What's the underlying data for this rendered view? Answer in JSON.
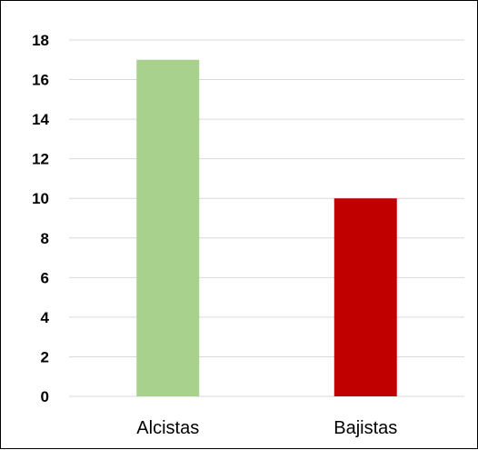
{
  "chart_data": {
    "type": "bar",
    "categories": [
      "Alcistas",
      "Bajistas"
    ],
    "values": [
      17,
      10
    ],
    "colors": [
      "#a9d18e",
      "#c00000"
    ],
    "ylim": [
      0,
      18
    ],
    "yticks": [
      0,
      2,
      4,
      6,
      8,
      10,
      12,
      14,
      16,
      18
    ],
    "grid": true,
    "legend": "none",
    "title": "",
    "xlabel": "",
    "ylabel": ""
  }
}
